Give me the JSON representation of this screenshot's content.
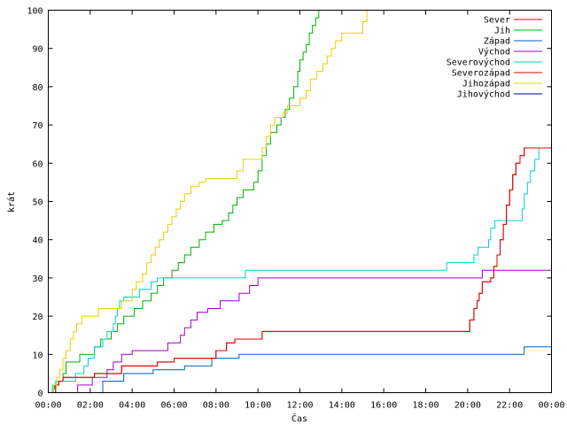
{
  "chart_data": {
    "type": "line",
    "title": "",
    "xlabel": "Čas",
    "ylabel": "krát",
    "xlim": [
      0,
      24
    ],
    "ylim": [
      0,
      100
    ],
    "x_ticks": [
      {
        "value": 0,
        "label": "00:00"
      },
      {
        "value": 2,
        "label": "02:00"
      },
      {
        "value": 4,
        "label": "04:00"
      },
      {
        "value": 6,
        "label": "06:00"
      },
      {
        "value": 8,
        "label": "08:00"
      },
      {
        "value": 10,
        "label": "10:00"
      },
      {
        "value": 12,
        "label": "12:00"
      },
      {
        "value": 14,
        "label": "14:00"
      },
      {
        "value": 16,
        "label": "16:00"
      },
      {
        "value": 18,
        "label": "18:00"
      },
      {
        "value": 20,
        "label": "20:00"
      },
      {
        "value": 22,
        "label": "22:00"
      },
      {
        "value": 24,
        "label": "00:00"
      }
    ],
    "y_ticks": [
      0,
      10,
      20,
      30,
      40,
      50,
      60,
      70,
      80,
      90,
      100
    ],
    "grid": false,
    "legend_position": "top-right",
    "series": [
      {
        "name": "Sever",
        "color": "#e00000",
        "points": [
          [
            0,
            0
          ],
          [
            0.35,
            2
          ],
          [
            0.5,
            3
          ],
          [
            0.7,
            4
          ],
          [
            2.2,
            5
          ],
          [
            3.5,
            7
          ],
          [
            5.2,
            8
          ],
          [
            6,
            9
          ],
          [
            8,
            11
          ],
          [
            8.5,
            13
          ],
          [
            8.9,
            14
          ],
          [
            10.2,
            16
          ],
          [
            20,
            16
          ],
          [
            20.1,
            19
          ],
          [
            20.3,
            22
          ],
          [
            20.45,
            24
          ],
          [
            20.55,
            26
          ],
          [
            20.7,
            29
          ],
          [
            21.1,
            30
          ],
          [
            21.25,
            33
          ],
          [
            21.4,
            36
          ],
          [
            21.55,
            40
          ],
          [
            21.7,
            44
          ],
          [
            21.85,
            49
          ],
          [
            22,
            53
          ],
          [
            22.15,
            57
          ],
          [
            22.3,
            60
          ],
          [
            22.5,
            62
          ],
          [
            22.7,
            64
          ],
          [
            24,
            64
          ]
        ]
      },
      {
        "name": "Jih",
        "color": "#00b000",
        "points": [
          [
            0,
            0
          ],
          [
            0.2,
            1
          ],
          [
            0.3,
            2
          ],
          [
            0.5,
            3
          ],
          [
            0.7,
            5
          ],
          [
            0.85,
            8
          ],
          [
            1.5,
            10
          ],
          [
            2.2,
            12
          ],
          [
            2.5,
            14
          ],
          [
            3,
            16
          ],
          [
            3.3,
            18
          ],
          [
            3.6,
            20
          ],
          [
            4.1,
            22
          ],
          [
            4.5,
            24
          ],
          [
            4.9,
            26
          ],
          [
            5.2,
            28
          ],
          [
            5.5,
            30
          ],
          [
            5.9,
            32
          ],
          [
            6.2,
            34
          ],
          [
            6.5,
            36
          ],
          [
            6.8,
            38
          ],
          [
            7.2,
            40
          ],
          [
            7.5,
            42
          ],
          [
            7.9,
            44
          ],
          [
            8.3,
            45
          ],
          [
            8.6,
            47
          ],
          [
            8.8,
            49
          ],
          [
            9,
            51
          ],
          [
            9.3,
            53
          ],
          [
            9.8,
            55
          ],
          [
            10,
            58
          ],
          [
            10.2,
            62
          ],
          [
            10.4,
            65
          ],
          [
            10.6,
            68
          ],
          [
            10.9,
            70
          ],
          [
            11.1,
            72
          ],
          [
            11.3,
            74
          ],
          [
            11.5,
            77
          ],
          [
            11.7,
            80
          ],
          [
            11.9,
            84
          ],
          [
            12,
            87
          ],
          [
            12.15,
            89
          ],
          [
            12.3,
            91
          ],
          [
            12.45,
            94
          ],
          [
            12.6,
            96
          ],
          [
            12.75,
            98
          ],
          [
            12.9,
            100
          ]
        ]
      },
      {
        "name": "Západ",
        "color": "#0060c0",
        "points": [
          [
            0,
            0
          ],
          [
            2.5,
            0
          ],
          [
            2.6,
            3
          ],
          [
            3.6,
            5
          ],
          [
            5,
            6
          ],
          [
            6.5,
            7
          ],
          [
            7.8,
            9
          ],
          [
            9.1,
            10
          ],
          [
            22.6,
            10
          ],
          [
            22.7,
            12
          ],
          [
            24,
            12
          ]
        ]
      },
      {
        "name": "Východ",
        "color": "#a000c0",
        "points": [
          [
            0,
            0
          ],
          [
            1.3,
            0
          ],
          [
            1.4,
            2
          ],
          [
            2.1,
            4
          ],
          [
            2.8,
            6
          ],
          [
            3.1,
            8
          ],
          [
            3.5,
            10
          ],
          [
            4,
            11
          ],
          [
            5.6,
            11
          ],
          [
            5.7,
            13
          ],
          [
            6.3,
            15
          ],
          [
            6.5,
            17
          ],
          [
            6.8,
            19
          ],
          [
            7.1,
            21
          ],
          [
            7.6,
            22
          ],
          [
            8.2,
            24
          ],
          [
            9,
            24
          ],
          [
            9.1,
            26
          ],
          [
            9.6,
            28
          ],
          [
            10,
            30
          ],
          [
            20.6,
            30
          ],
          [
            20.7,
            32
          ],
          [
            24,
            32
          ]
        ]
      },
      {
        "name": "Severovýchod",
        "color": "#00d0d0",
        "points": [
          [
            0,
            0
          ],
          [
            0.2,
            2
          ],
          [
            0.35,
            3
          ],
          [
            1.2,
            3
          ],
          [
            1.3,
            5
          ],
          [
            1.7,
            7
          ],
          [
            1.9,
            9
          ],
          [
            2.2,
            12
          ],
          [
            2.6,
            14
          ],
          [
            2.8,
            16
          ],
          [
            3.1,
            18
          ],
          [
            3.2,
            20
          ],
          [
            3.3,
            22
          ],
          [
            3.4,
            24
          ],
          [
            3.6,
            25
          ],
          [
            4.2,
            25
          ],
          [
            4.35,
            27
          ],
          [
            4.9,
            29
          ],
          [
            5.2,
            30
          ],
          [
            9.3,
            30
          ],
          [
            9.4,
            32
          ],
          [
            18.9,
            32
          ],
          [
            19,
            34
          ],
          [
            20.1,
            34
          ],
          [
            20.3,
            36
          ],
          [
            20.5,
            38
          ],
          [
            21,
            40
          ],
          [
            21.1,
            43
          ],
          [
            21.3,
            45
          ],
          [
            22.4,
            45
          ],
          [
            22.6,
            48
          ],
          [
            22.7,
            52
          ],
          [
            22.85,
            55
          ],
          [
            23,
            58
          ],
          [
            23.2,
            61
          ],
          [
            23.4,
            64
          ],
          [
            24,
            67
          ]
        ]
      },
      {
        "name": "Severozápad",
        "color": "#e00000",
        "points": [
          [
            0,
            0
          ],
          [
            0.35,
            2
          ],
          [
            0.5,
            3
          ],
          [
            0.7,
            4
          ],
          [
            2.2,
            5
          ],
          [
            3.5,
            7
          ],
          [
            5.2,
            8
          ],
          [
            6,
            9
          ],
          [
            8,
            11
          ],
          [
            8.5,
            13
          ],
          [
            8.9,
            14
          ],
          [
            10.2,
            16
          ],
          [
            20,
            16
          ],
          [
            20.1,
            19
          ],
          [
            20.3,
            22
          ],
          [
            20.45,
            24
          ],
          [
            20.55,
            26
          ],
          [
            20.7,
            29
          ],
          [
            21.1,
            30
          ],
          [
            21.25,
            33
          ],
          [
            21.4,
            36
          ],
          [
            21.55,
            40
          ],
          [
            21.7,
            44
          ],
          [
            21.85,
            49
          ],
          [
            22,
            53
          ],
          [
            22.15,
            57
          ],
          [
            22.3,
            60
          ],
          [
            22.5,
            62
          ],
          [
            22.7,
            64
          ],
          [
            24,
            64
          ]
        ]
      },
      {
        "name": "Jihozápad",
        "color": "#e8d000",
        "points": [
          [
            0,
            0
          ],
          [
            0.25,
            2
          ],
          [
            0.4,
            4
          ],
          [
            0.55,
            6
          ],
          [
            0.7,
            9
          ],
          [
            0.85,
            11
          ],
          [
            1.05,
            14
          ],
          [
            1.2,
            16
          ],
          [
            1.35,
            18
          ],
          [
            1.6,
            20
          ],
          [
            2.2,
            20
          ],
          [
            2.4,
            22
          ],
          [
            3.2,
            22
          ],
          [
            3.5,
            24
          ],
          [
            4,
            27
          ],
          [
            4.2,
            29
          ],
          [
            4.5,
            31
          ],
          [
            4.7,
            34
          ],
          [
            4.9,
            36
          ],
          [
            5.1,
            38
          ],
          [
            5.3,
            40
          ],
          [
            5.5,
            42
          ],
          [
            5.7,
            44
          ],
          [
            5.9,
            46
          ],
          [
            6.1,
            48
          ],
          [
            6.3,
            50
          ],
          [
            6.5,
            52
          ],
          [
            6.8,
            54
          ],
          [
            7.2,
            55
          ],
          [
            7.5,
            56
          ],
          [
            8.8,
            56
          ],
          [
            9,
            58
          ],
          [
            9.3,
            61
          ],
          [
            10,
            61
          ],
          [
            10.2,
            64
          ],
          [
            10.4,
            67
          ],
          [
            10.6,
            70
          ],
          [
            10.8,
            72
          ],
          [
            11.2,
            73
          ],
          [
            11.4,
            75
          ],
          [
            11.8,
            75
          ],
          [
            12,
            77
          ],
          [
            12.3,
            79
          ],
          [
            12.5,
            82
          ],
          [
            12.8,
            84
          ],
          [
            13.1,
            86
          ],
          [
            13.3,
            88
          ],
          [
            13.5,
            90
          ],
          [
            13.7,
            92
          ],
          [
            14,
            94
          ],
          [
            14.8,
            94
          ],
          [
            15,
            97
          ],
          [
            15.2,
            100
          ]
        ]
      },
      {
        "name": "Jihovýchod",
        "color": "#000090",
        "points": []
      }
    ]
  }
}
